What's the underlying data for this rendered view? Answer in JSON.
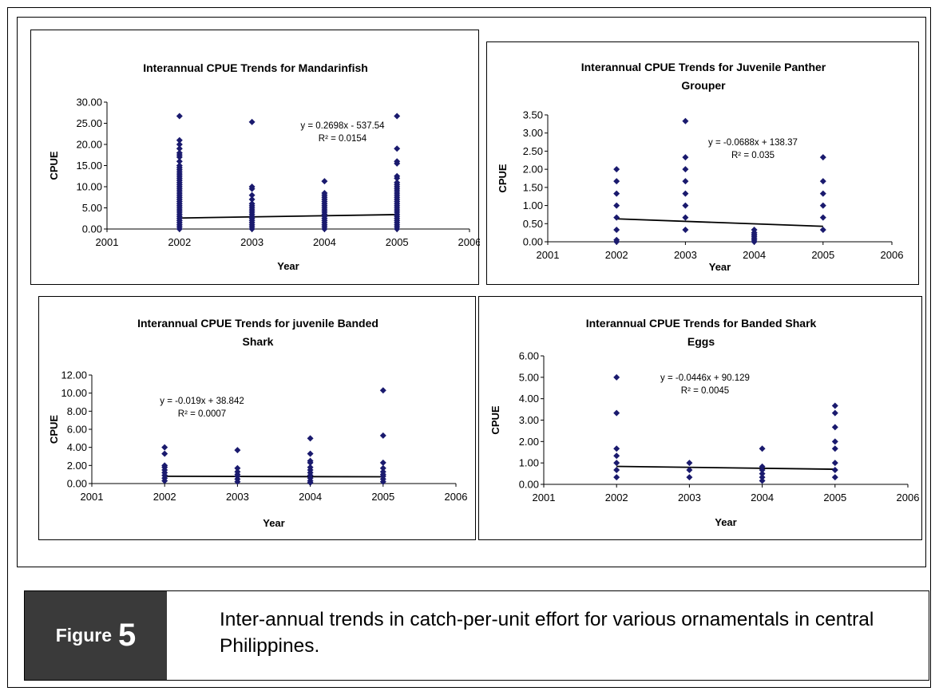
{
  "figure": {
    "label_word": "Figure",
    "label_number": "5",
    "caption": "Inter-annual trends in catch-per-unit effort for various ornamentals in central Philippines."
  },
  "colors": {
    "marker": "#1a1a6e",
    "trendline": "#000000",
    "caption_label_bg": "#3a3a3a"
  },
  "chart_data": [
    {
      "type": "scatter",
      "title": "Interannual CPUE Trends for Mandarinfish",
      "xlabel": "Year",
      "ylabel": "CPUE",
      "xlim": [
        2001,
        2006
      ],
      "ylim": [
        0,
        30
      ],
      "xticks": [
        "2001",
        "2002",
        "2003",
        "2004",
        "2005",
        "2006"
      ],
      "yticks": [
        "0.00",
        "5.00",
        "10.00",
        "15.00",
        "20.00",
        "25.00",
        "30.00"
      ],
      "trendline": {
        "slope": 0.2698,
        "intercept": -537.54,
        "equation": "y = 0.2698x - 537.54",
        "r2": "R² = 0.0154"
      },
      "series": [
        {
          "x": 2002,
          "y": [
            0,
            0.5,
            1,
            1.5,
            2,
            2.5,
            3,
            3.5,
            4,
            4.5,
            5,
            5.5,
            6,
            6.5,
            7,
            7.5,
            8,
            8.5,
            9,
            9.5,
            10,
            10.5,
            11,
            11.5,
            12,
            12.5,
            13,
            13.5,
            14,
            14.5,
            15,
            16,
            17,
            17.5,
            18,
            19,
            20,
            21,
            26.7
          ]
        },
        {
          "x": 2003,
          "y": [
            0,
            0.5,
            1,
            1.5,
            2,
            2.5,
            3,
            3.5,
            4,
            4.5,
            5,
            5.5,
            6,
            7,
            8,
            9.5,
            10,
            25.3
          ]
        },
        {
          "x": 2004,
          "y": [
            0,
            0.5,
            1,
            1.5,
            2,
            2.5,
            3,
            3.5,
            4,
            4.5,
            5,
            5.5,
            6,
            6.5,
            7,
            7.5,
            8,
            8.5,
            11.3
          ]
        },
        {
          "x": 2005,
          "y": [
            0,
            0.5,
            1,
            1.5,
            2,
            2.5,
            3,
            3.5,
            4,
            4.5,
            5,
            5.5,
            6,
            6.5,
            7,
            7.5,
            8,
            8.5,
            9,
            9.5,
            10,
            10.5,
            11,
            12,
            12.5,
            15.5,
            16,
            19,
            26.7
          ]
        }
      ]
    },
    {
      "type": "scatter",
      "title": "Interannual CPUE Trends for Juvenile Panther Grouper",
      "title_lines": [
        "Interannual CPUE Trends for Juvenile Panther",
        "Grouper"
      ],
      "xlabel": "Year",
      "ylabel": "CPUE",
      "xlim": [
        2001,
        2006
      ],
      "ylim": [
        0,
        3.5
      ],
      "xticks": [
        "2001",
        "2002",
        "2003",
        "2004",
        "2005",
        "2006"
      ],
      "yticks": [
        "0.00",
        "0.50",
        "1.00",
        "1.50",
        "2.00",
        "2.50",
        "3.00",
        "3.50"
      ],
      "trendline": {
        "slope": -0.0688,
        "intercept": 138.37,
        "equation": "y = -0.0688x + 138.37",
        "r2": "R² = 0.035"
      },
      "series": [
        {
          "x": 2002,
          "y": [
            0,
            0.05,
            0.33,
            0.67,
            1.0,
            1.33,
            1.67,
            2.0
          ]
        },
        {
          "x": 2003,
          "y": [
            0.33,
            0.67,
            1.0,
            1.33,
            1.67,
            2.0,
            2.33,
            3.33
          ]
        },
        {
          "x": 2004,
          "y": [
            0,
            0.05,
            0.1,
            0.15,
            0.2,
            0.25,
            0.33
          ]
        },
        {
          "x": 2005,
          "y": [
            0.33,
            0.67,
            1.0,
            1.33,
            1.67,
            2.33
          ]
        }
      ]
    },
    {
      "type": "scatter",
      "title": "Interannual CPUE Trends for juvenile Banded Shark",
      "title_lines": [
        "Interannual CPUE Trends for juvenile Banded",
        "Shark"
      ],
      "xlabel": "Year",
      "ylabel": "CPUE",
      "xlim": [
        2001,
        2006
      ],
      "ylim": [
        0,
        12
      ],
      "xticks": [
        "2001",
        "2002",
        "2003",
        "2004",
        "2005",
        "2006"
      ],
      "yticks": [
        "0.00",
        "2.00",
        "4.00",
        "6.00",
        "8.00",
        "10.00",
        "12.00"
      ],
      "trendline": {
        "slope": -0.019,
        "intercept": 38.842,
        "equation": "y = -0.019x + 38.842",
        "r2": "R² = 0.0007"
      },
      "series": [
        {
          "x": 2002,
          "y": [
            0.3,
            0.6,
            0.9,
            1.2,
            1.5,
            1.8,
            2.0,
            3.3,
            4.0
          ]
        },
        {
          "x": 2003,
          "y": [
            0.2,
            0.5,
            0.8,
            1.0,
            1.3,
            1.7,
            3.7
          ]
        },
        {
          "x": 2004,
          "y": [
            0.1,
            0.3,
            0.6,
            0.9,
            1.2,
            1.5,
            1.8,
            2.3,
            2.5,
            3.3,
            5.0
          ]
        },
        {
          "x": 2005,
          "y": [
            0.2,
            0.5,
            0.8,
            1.0,
            1.3,
            1.7,
            2.3,
            5.3,
            10.3
          ]
        }
      ]
    },
    {
      "type": "scatter",
      "title": "Interannual CPUE Trends for Banded Shark Eggs",
      "title_lines": [
        "Interannual CPUE Trends for Banded Shark",
        "Eggs"
      ],
      "xlabel": "Year",
      "ylabel": "CPUE",
      "xlim": [
        2001,
        2006
      ],
      "ylim": [
        0,
        6
      ],
      "xticks": [
        "2001",
        "2002",
        "2003",
        "2004",
        "2005",
        "2006"
      ],
      "yticks": [
        "0.00",
        "1.00",
        "2.00",
        "3.00",
        "4.00",
        "5.00",
        "6.00"
      ],
      "trendline": {
        "slope": -0.0446,
        "intercept": 90.129,
        "equation": "y = -0.0446x + 90.129",
        "r2": "R² = 0.0045"
      },
      "series": [
        {
          "x": 2002,
          "y": [
            0.33,
            0.67,
            1.0,
            1.33,
            1.67,
            3.33,
            5.0
          ]
        },
        {
          "x": 2003,
          "y": [
            0.33,
            0.67,
            1.0
          ]
        },
        {
          "x": 2004,
          "y": [
            0.17,
            0.33,
            0.5,
            0.67,
            0.83,
            1.67
          ]
        },
        {
          "x": 2005,
          "y": [
            0.33,
            0.67,
            1.0,
            1.67,
            2.0,
            2.67,
            3.33,
            3.67
          ]
        }
      ]
    }
  ]
}
